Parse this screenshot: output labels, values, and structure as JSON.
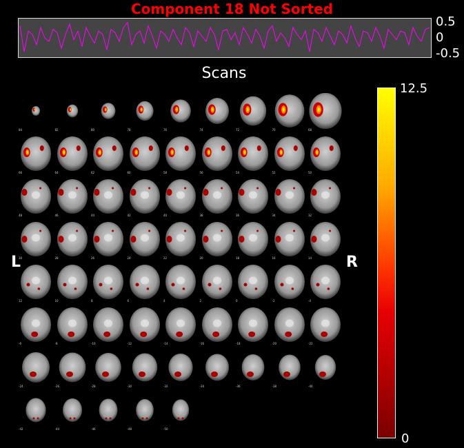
{
  "title": "Component 18 Not Sorted",
  "timecourse": {
    "tick_top": "0.5",
    "tick_mid": "0",
    "tick_bot": "-0.5",
    "line_color": "#ff00ff",
    "panel_color": "#444444",
    "ylim": [
      -0.5,
      0.5
    ],
    "values": [
      0.35,
      -0.4,
      0.2,
      0.1,
      -0.2,
      0.3,
      0.0,
      -0.1,
      0.25,
      0.15,
      -0.3,
      0.1,
      0.4,
      -0.05,
      0.2,
      -0.25,
      0.3,
      0.05,
      -0.15,
      0.2,
      0.1,
      -0.35,
      0.25,
      0.15,
      -0.1,
      0.3,
      0.45,
      -0.2,
      0.1,
      0.2,
      -0.15,
      0.35,
      0.05,
      -0.3,
      0.2,
      0.1,
      -0.1,
      0.25,
      0.0,
      -0.2,
      0.3,
      0.15,
      -0.25,
      0.2,
      0.05,
      -0.1,
      0.3,
      0.1,
      -0.35,
      0.2,
      0.25,
      -0.05,
      0.15,
      -0.2,
      0.3,
      0.1,
      -0.15,
      0.25,
      0.05,
      -0.3,
      0.2,
      0.35,
      -0.1,
      0.15,
      0.0,
      -0.25,
      0.3,
      0.1,
      -0.05,
      0.2,
      -0.4,
      0.25,
      0.15,
      -0.1,
      0.3,
      0.05,
      -0.2,
      0.2,
      0.1,
      -0.15,
      0.35,
      0.0,
      -0.25,
      0.2,
      0.15,
      -0.1,
      0.3,
      0.05,
      -0.3,
      0.25,
      0.1,
      -0.05,
      0.2,
      0.15,
      -0.2,
      0.3,
      0.05,
      -0.1,
      0.25,
      0.3
    ]
  },
  "scans_label": "Scans",
  "left_label": "L",
  "right_label": "R",
  "colorbar": {
    "max": "12.5",
    "min": "0"
  },
  "slices": [
    {
      "z": "84"
    },
    {
      "z": "82"
    },
    {
      "z": "80"
    },
    {
      "z": "78"
    },
    {
      "z": "76"
    },
    {
      "z": "74"
    },
    {
      "z": "72"
    },
    {
      "z": "70"
    },
    {
      "z": "68"
    },
    {
      "z": "66"
    },
    {
      "z": "64"
    },
    {
      "z": "62"
    },
    {
      "z": "60"
    },
    {
      "z": "58"
    },
    {
      "z": "56"
    },
    {
      "z": "54"
    },
    {
      "z": "52"
    },
    {
      "z": "50"
    },
    {
      "z": "48"
    },
    {
      "z": "46"
    },
    {
      "z": "44"
    },
    {
      "z": "42"
    },
    {
      "z": "40"
    },
    {
      "z": "38"
    },
    {
      "z": "36"
    },
    {
      "z": "34"
    },
    {
      "z": "32"
    },
    {
      "z": "30"
    },
    {
      "z": "28"
    },
    {
      "z": "26"
    },
    {
      "z": "24"
    },
    {
      "z": "22"
    },
    {
      "z": "20"
    },
    {
      "z": "18"
    },
    {
      "z": "16"
    },
    {
      "z": "14"
    },
    {
      "z": "12"
    },
    {
      "z": "10"
    },
    {
      "z": "8"
    },
    {
      "z": "6"
    },
    {
      "z": "4"
    },
    {
      "z": "2"
    },
    {
      "z": "0"
    },
    {
      "z": "-2"
    },
    {
      "z": "-4"
    },
    {
      "z": "-6"
    },
    {
      "z": "-8"
    },
    {
      "z": "-10"
    },
    {
      "z": "-12"
    },
    {
      "z": "-14"
    },
    {
      "z": "-16"
    },
    {
      "z": "-18"
    },
    {
      "z": "-20"
    },
    {
      "z": "-22"
    },
    {
      "z": "-24"
    },
    {
      "z": "-26"
    },
    {
      "z": "-28"
    },
    {
      "z": "-30"
    },
    {
      "z": "-32"
    },
    {
      "z": "-34"
    },
    {
      "z": "-36"
    },
    {
      "z": "-38"
    },
    {
      "z": "-40"
    },
    {
      "z": "-42"
    },
    {
      "z": "-44"
    },
    {
      "z": "-46"
    },
    {
      "z": "-48"
    },
    {
      "z": "-50"
    }
  ]
}
